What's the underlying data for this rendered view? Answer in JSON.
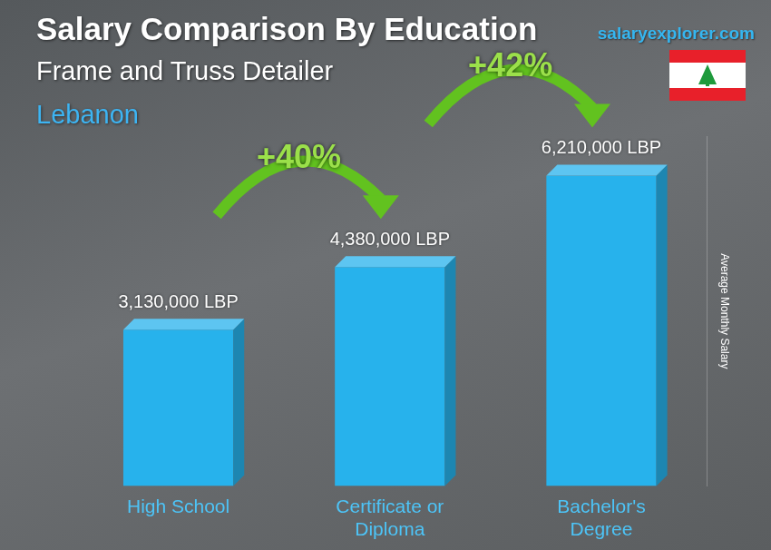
{
  "chart_data": {
    "type": "bar",
    "title": "Salary Comparison By Education",
    "subtitle": "Frame and Truss Detailer",
    "location": "Lebanon",
    "source": "salaryexplorer.com",
    "y_label": "Average Monthly Salary",
    "categories": [
      "High School",
      "Certificate or Diploma",
      "Bachelor's Degree"
    ],
    "values": [
      3130000,
      4380000,
      6210000
    ],
    "value_labels": [
      "3,130,000 LBP",
      "4,380,000 LBP",
      "6,210,000 LBP"
    ],
    "annotations": [
      {
        "text": "+40%",
        "from": "High School",
        "to": "Certificate or Diploma"
      },
      {
        "text": "+42%",
        "from": "Certificate or Diploma",
        "to": "Bachelor's Degree"
      }
    ],
    "color": "#27b2ec",
    "ylim": [
      0,
      7000000
    ],
    "grid": false,
    "data_labels": true,
    "tick_labels": "x"
  }
}
